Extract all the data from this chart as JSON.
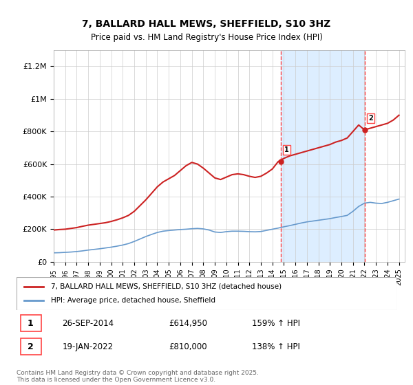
{
  "title": "7, BALLARD HALL MEWS, SHEFFIELD, S10 3HZ",
  "subtitle": "Price paid vs. HM Land Registry's House Price Index (HPI)",
  "xlabel": "",
  "ylabel": "",
  "ylim": [
    0,
    1300000
  ],
  "yticks": [
    0,
    200000,
    400000,
    600000,
    800000,
    1000000,
    1200000
  ],
  "ytick_labels": [
    "£0",
    "£200K",
    "£400K",
    "£600K",
    "£800K",
    "£1M",
    "£1.2M"
  ],
  "background_color": "#ffffff",
  "plot_bg_color": "#ffffff",
  "sale1_date": 2014.74,
  "sale1_price": 614950,
  "sale2_date": 2022.05,
  "sale2_price": 810000,
  "shade_color": "#ddeeff",
  "vline_color": "#ff4444",
  "legend_line1": "7, BALLARD HALL MEWS, SHEFFIELD, S10 3HZ (detached house)",
  "legend_line2": "HPI: Average price, detached house, Sheffield",
  "footer": "Contains HM Land Registry data © Crown copyright and database right 2025.\nThis data is licensed under the Open Government Licence v3.0.",
  "table": [
    {
      "num": "1",
      "date": "26-SEP-2014",
      "price": "£614,950",
      "hpi": "159% ↑ HPI"
    },
    {
      "num": "2",
      "date": "19-JAN-2022",
      "price": "£810,000",
      "hpi": "138% ↑ HPI"
    }
  ],
  "hpi_line_color": "#6699cc",
  "price_line_color": "#cc2222",
  "hpi_data_x": [
    1995.0,
    1995.5,
    1996.0,
    1996.5,
    1997.0,
    1997.5,
    1998.0,
    1998.5,
    1999.0,
    1999.5,
    2000.0,
    2000.5,
    2001.0,
    2001.5,
    2002.0,
    2002.5,
    2003.0,
    2003.5,
    2004.0,
    2004.5,
    2005.0,
    2005.5,
    2006.0,
    2006.5,
    2007.0,
    2007.5,
    2008.0,
    2008.5,
    2009.0,
    2009.5,
    2010.0,
    2010.5,
    2011.0,
    2011.5,
    2012.0,
    2012.5,
    2013.0,
    2013.5,
    2014.0,
    2014.5,
    2015.0,
    2015.5,
    2016.0,
    2016.5,
    2017.0,
    2017.5,
    2018.0,
    2018.5,
    2019.0,
    2019.5,
    2020.0,
    2020.5,
    2021.0,
    2021.5,
    2022.0,
    2022.5,
    2023.0,
    2023.5,
    2024.0,
    2024.5,
    2025.0
  ],
  "hpi_data_y": [
    55000,
    56000,
    58000,
    60000,
    63000,
    67000,
    72000,
    76000,
    80000,
    85000,
    90000,
    96000,
    103000,
    112000,
    125000,
    140000,
    155000,
    168000,
    180000,
    188000,
    192000,
    195000,
    198000,
    200000,
    203000,
    205000,
    202000,
    195000,
    183000,
    180000,
    185000,
    188000,
    188000,
    187000,
    185000,
    184000,
    186000,
    193000,
    200000,
    207000,
    215000,
    222000,
    230000,
    238000,
    245000,
    250000,
    255000,
    260000,
    265000,
    272000,
    278000,
    285000,
    310000,
    340000,
    360000,
    365000,
    360000,
    358000,
    365000,
    375000,
    385000
  ],
  "price_data_x": [
    1995.0,
    1995.5,
    1996.0,
    1996.5,
    1997.0,
    1997.5,
    1998.0,
    1998.5,
    1999.0,
    1999.5,
    2000.0,
    2000.5,
    2001.0,
    2001.5,
    2002.0,
    2002.5,
    2003.0,
    2003.5,
    2004.0,
    2004.5,
    2005.0,
    2005.5,
    2006.0,
    2006.5,
    2007.0,
    2007.5,
    2008.0,
    2008.5,
    2009.0,
    2009.5,
    2010.0,
    2010.5,
    2011.0,
    2011.5,
    2012.0,
    2012.5,
    2013.0,
    2013.5,
    2014.0,
    2014.5,
    2015.0,
    2015.5,
    2016.0,
    2016.5,
    2017.0,
    2017.5,
    2018.0,
    2018.5,
    2019.0,
    2019.5,
    2020.0,
    2020.5,
    2021.0,
    2021.5,
    2022.0,
    2022.5,
    2023.0,
    2023.5,
    2024.0,
    2024.5,
    2025.0
  ],
  "price_data_y": [
    195000,
    198000,
    200000,
    205000,
    210000,
    218000,
    225000,
    230000,
    235000,
    240000,
    248000,
    258000,
    270000,
    285000,
    310000,
    345000,
    380000,
    420000,
    460000,
    490000,
    510000,
    530000,
    560000,
    590000,
    610000,
    600000,
    575000,
    545000,
    515000,
    505000,
    520000,
    535000,
    540000,
    535000,
    525000,
    518000,
    525000,
    545000,
    570000,
    614950,
    635000,
    650000,
    660000,
    670000,
    680000,
    690000,
    700000,
    710000,
    720000,
    735000,
    745000,
    760000,
    800000,
    840000,
    810000,
    820000,
    830000,
    840000,
    850000,
    870000,
    900000
  ],
  "xmin": 1995,
  "xmax": 2025.5,
  "xtick_years": [
    1995,
    1996,
    1997,
    1998,
    1999,
    2000,
    2001,
    2002,
    2003,
    2004,
    2005,
    2006,
    2007,
    2008,
    2009,
    2010,
    2011,
    2012,
    2013,
    2014,
    2015,
    2016,
    2017,
    2018,
    2019,
    2020,
    2021,
    2022,
    2023,
    2024,
    2025
  ]
}
